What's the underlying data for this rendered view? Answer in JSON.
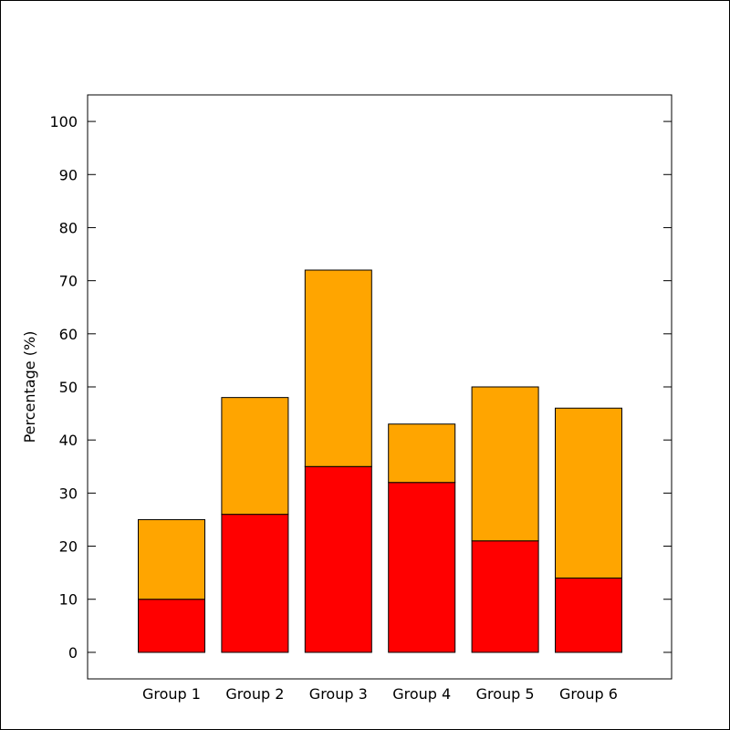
{
  "chart_data": {
    "type": "bar",
    "stacked": true,
    "title": "",
    "xlabel": "",
    "ylabel": "Percentage (%)",
    "ylim": [
      -5,
      105
    ],
    "yticks": [
      0,
      10,
      20,
      30,
      40,
      50,
      60,
      70,
      80,
      90,
      100
    ],
    "grid": false,
    "legend": "none",
    "categories": [
      "Group 1",
      "Group 2",
      "Group 3",
      "Group 4",
      "Group 5",
      "Group 6"
    ],
    "series": [
      {
        "color": "#ff0000",
        "values": [
          10,
          26,
          35,
          32,
          21,
          14
        ]
      },
      {
        "color": "#ffa500",
        "values": [
          15,
          22,
          37,
          11,
          29,
          32
        ]
      }
    ]
  }
}
